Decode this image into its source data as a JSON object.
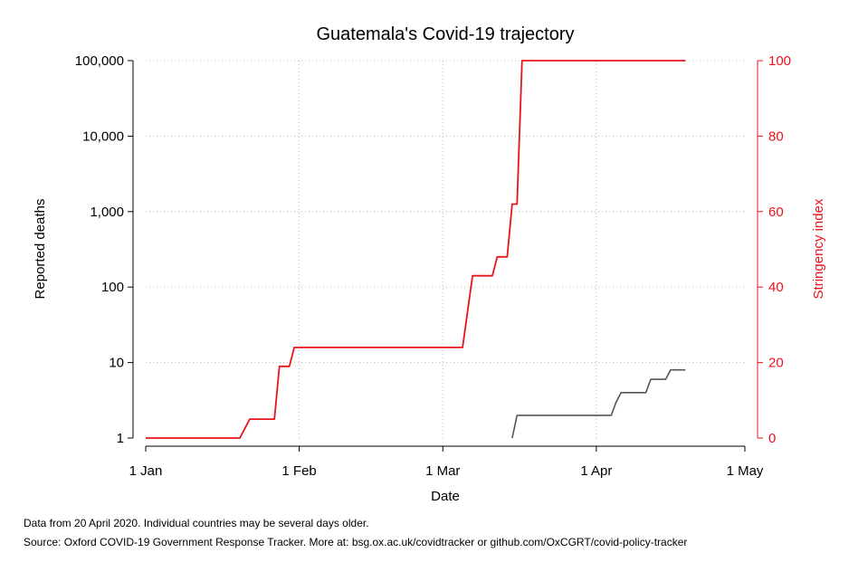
{
  "chart_data": {
    "type": "line",
    "title": "Guatemala's Covid-19 trajectory",
    "xlabel": "Date",
    "ylabel_left": "Reported deaths",
    "ylabel_right": "Stringency index",
    "x_ticks": [
      "1 Jan",
      "1 Feb",
      "1 Mar",
      "1 Apr",
      "1 May"
    ],
    "x_tick_dates": [
      "2020-01-01",
      "2020-02-01",
      "2020-03-01",
      "2020-04-01",
      "2020-05-01"
    ],
    "y_left_ticks": [
      {
        "value": 1,
        "label": "1"
      },
      {
        "value": 10,
        "label": "10"
      },
      {
        "value": 100,
        "label": "100"
      },
      {
        "value": 1000,
        "label": "1,000"
      },
      {
        "value": 10000,
        "label": "10,000"
      },
      {
        "value": 100000,
        "label": "100,000"
      }
    ],
    "y_right_ticks": [
      {
        "value": 0,
        "label": "0"
      },
      {
        "value": 20,
        "label": "20"
      },
      {
        "value": 40,
        "label": "40"
      },
      {
        "value": 60,
        "label": "60"
      },
      {
        "value": 80,
        "label": "80"
      },
      {
        "value": 100,
        "label": "100"
      }
    ],
    "y_left_scale": "log",
    "y_left_range": [
      1,
      100000
    ],
    "y_right_range": [
      0,
      100
    ],
    "x_range": [
      "2020-01-01",
      "2020-05-01"
    ],
    "grid": "dotted",
    "series": [
      {
        "axis": "right",
        "color": "#e8141c",
        "points": [
          [
            "2020-01-01",
            0
          ],
          [
            "2020-01-20",
            0
          ],
          [
            "2020-01-22",
            5
          ],
          [
            "2020-01-27",
            5
          ],
          [
            "2020-01-28",
            19
          ],
          [
            "2020-01-30",
            19
          ],
          [
            "2020-01-31",
            24
          ],
          [
            "2020-03-05",
            24
          ],
          [
            "2020-03-07",
            43
          ],
          [
            "2020-03-11",
            43
          ],
          [
            "2020-03-12",
            48
          ],
          [
            "2020-03-14",
            48
          ],
          [
            "2020-03-15",
            62
          ],
          [
            "2020-03-16",
            62
          ],
          [
            "2020-03-17",
            100
          ],
          [
            "2020-04-19",
            100
          ]
        ]
      },
      {
        "axis": "left",
        "color": "#555555",
        "points": [
          [
            "2020-03-15",
            1
          ],
          [
            "2020-03-16",
            2
          ],
          [
            "2020-04-04",
            2
          ],
          [
            "2020-04-05",
            3
          ],
          [
            "2020-04-06",
            4
          ],
          [
            "2020-04-11",
            4
          ],
          [
            "2020-04-12",
            6
          ],
          [
            "2020-04-15",
            6
          ],
          [
            "2020-04-16",
            8
          ],
          [
            "2020-04-19",
            8
          ]
        ]
      }
    ]
  },
  "footnotes": {
    "line1": "Data from 20 April 2020. Individual countries may be several days older.",
    "line2": "Source: Oxford COVID-19 Government Response Tracker. More at: bsg.ox.ac.uk/covidtracker or github.com/OxCGRT/covid-policy-tracker"
  }
}
